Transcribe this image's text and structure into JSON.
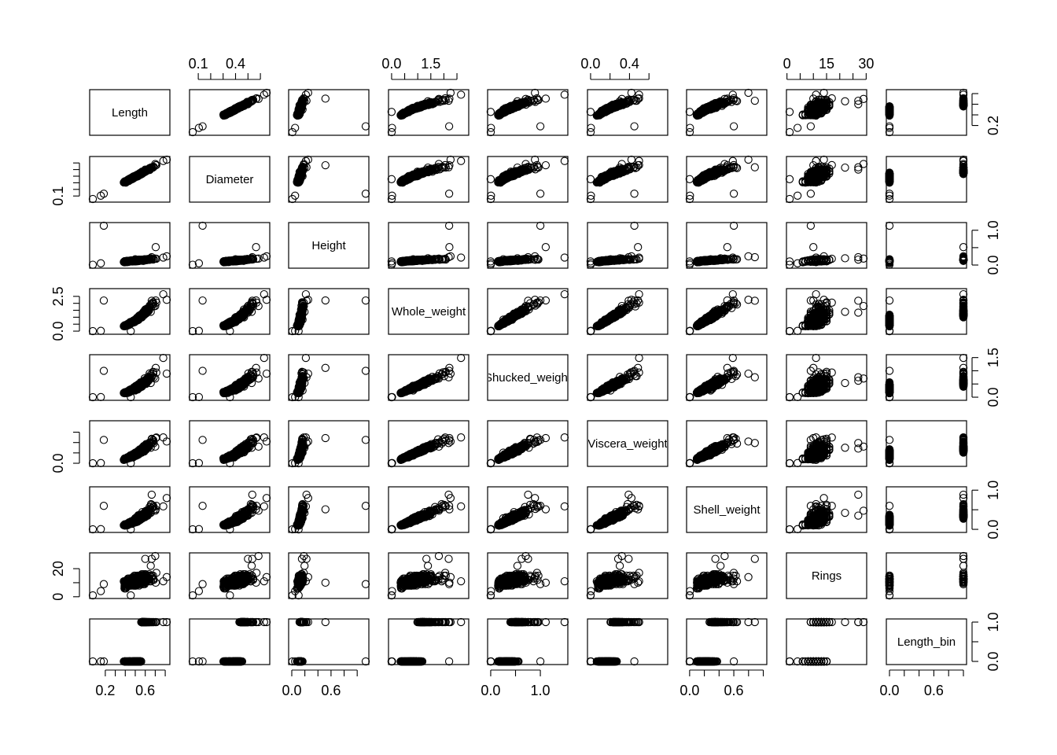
{
  "chart_data": {
    "type": "scatter",
    "kind": "scatterplot-matrix",
    "grid": false,
    "marker": "open-circle",
    "variables": [
      {
        "name": "Length",
        "label": "Length",
        "range": [
          0.075,
          0.815
        ]
      },
      {
        "name": "Diameter",
        "label": "Diameter",
        "range": [
          0.055,
          0.65
        ]
      },
      {
        "name": "Height",
        "label": "Height",
        "range": [
          0.0,
          1.13
        ]
      },
      {
        "name": "Whole_weight",
        "label": "Whole_weight",
        "range": [
          0.002,
          2.83
        ]
      },
      {
        "name": "Shucked_weight",
        "label": "Shucked_weight",
        "range": [
          0.001,
          1.49
        ]
      },
      {
        "name": "Viscera_weight",
        "label": "Viscera_weight",
        "range": [
          0.0005,
          0.76
        ]
      },
      {
        "name": "Shell_weight",
        "label": "Shell_weight",
        "range": [
          0.0015,
          1.005
        ]
      },
      {
        "name": "Rings",
        "label": "Rings",
        "range": [
          1,
          29
        ]
      },
      {
        "name": "Length_bin",
        "label": "Length_bin",
        "range": [
          0,
          1
        ]
      }
    ],
    "axes": {
      "bottom": [
        {
          "var_index": 0,
          "ticks": [
            0.2,
            0.3,
            0.4,
            0.5,
            0.6,
            0.7,
            0.8
          ],
          "labels": [
            "0.2",
            "0.6"
          ],
          "label_values": [
            0.2,
            0.6
          ]
        },
        {
          "var_index": 2,
          "ticks": [
            0.0,
            0.2,
            0.4,
            0.6,
            0.8,
            1.0
          ],
          "labels": [
            "0.0",
            "0.6"
          ],
          "label_values": [
            0.0,
            0.6
          ]
        },
        {
          "var_index": 4,
          "ticks": [
            0.0,
            0.5,
            1.0
          ],
          "labels": [
            "0.0",
            "1.0"
          ],
          "label_values": [
            0.0,
            1.0
          ]
        },
        {
          "var_index": 6,
          "ticks": [
            0.0,
            0.2,
            0.4,
            0.6,
            0.8,
            1.0
          ],
          "labels": [
            "0.0",
            "0.6"
          ],
          "label_values": [
            0.0,
            0.6
          ]
        },
        {
          "var_index": 8,
          "ticks": [
            0.0,
            0.2,
            0.4,
            0.6,
            0.8,
            1.0
          ],
          "labels": [
            "0.0",
            "0.6"
          ],
          "label_values": [
            0.0,
            0.6
          ]
        }
      ],
      "top": [
        {
          "var_index": 1,
          "ticks": [
            0.1,
            0.2,
            0.3,
            0.4,
            0.5,
            0.6
          ],
          "labels": [
            "0.1",
            "0.4"
          ],
          "label_values": [
            0.1,
            0.4
          ]
        },
        {
          "var_index": 3,
          "ticks": [
            0.0,
            0.5,
            1.0,
            1.5,
            2.0,
            2.5
          ],
          "labels": [
            "0.0",
            "1.5"
          ],
          "label_values": [
            0.0,
            1.5
          ]
        },
        {
          "var_index": 5,
          "ticks": [
            0.0,
            0.2,
            0.4,
            0.6
          ],
          "labels": [
            "0.0",
            "0.4"
          ],
          "label_values": [
            0.0,
            0.4
          ]
        },
        {
          "var_index": 7,
          "ticks": [
            0,
            5,
            10,
            15,
            20,
            25,
            30
          ],
          "labels": [
            "0",
            "15",
            "30"
          ],
          "label_values": [
            0,
            15,
            30
          ]
        }
      ],
      "left": [
        {
          "var_index": 1,
          "ticks": [
            0.1,
            0.2,
            0.3,
            0.4,
            0.5,
            0.6
          ],
          "labels": [
            "0.1"
          ],
          "label_values": [
            0.1
          ]
        },
        {
          "var_index": 3,
          "ticks": [
            0.0,
            0.5,
            1.0,
            1.5,
            2.0,
            2.5
          ],
          "labels": [
            "0.0",
            "2.5"
          ],
          "label_values": [
            0.0,
            2.5
          ]
        },
        {
          "var_index": 5,
          "ticks": [
            0.0,
            0.2,
            0.4,
            0.6
          ],
          "labels": [
            "0.0"
          ],
          "label_values": [
            0.0
          ]
        },
        {
          "var_index": 7,
          "ticks": [
            0,
            10,
            20
          ],
          "labels": [
            "0",
            "20"
          ],
          "label_values": [
            0,
            20
          ]
        }
      ],
      "right": [
        {
          "var_index": 0,
          "ticks": [
            0.2,
            0.4,
            0.6,
            0.8
          ],
          "labels": [
            "0.2"
          ],
          "label_values": [
            0.2
          ]
        },
        {
          "var_index": 2,
          "ticks": [
            0.0,
            0.5,
            1.0
          ],
          "labels": [
            "0.0",
            "1.0"
          ],
          "label_values": [
            0.0,
            1.0
          ]
        },
        {
          "var_index": 4,
          "ticks": [
            0.0,
            0.5,
            1.0,
            1.5
          ],
          "labels": [
            "0.0",
            "1.5"
          ],
          "label_values": [
            0.0,
            1.5
          ]
        },
        {
          "var_index": 6,
          "ticks": [
            0.0,
            0.5,
            1.0
          ],
          "labels": [
            "0.0",
            "1.0"
          ],
          "label_values": [
            0.0,
            1.0
          ]
        },
        {
          "var_index": 8,
          "ticks": [
            0.0,
            0.5,
            1.0
          ],
          "labels": [
            "0.0",
            "1.0"
          ],
          "label_values": [
            0.0,
            1.0
          ]
        }
      ]
    },
    "observations": {
      "columns": [
        "Length",
        "Diameter",
        "Height",
        "Whole_weight",
        "Shucked_weight",
        "Viscera_weight",
        "Shell_weight",
        "Rings",
        "Length_bin"
      ],
      "rows": [
        [
          0.185,
          0.135,
          1.13,
          2.2,
          1.0,
          0.45,
          0.6,
          9,
          0
        ],
        [
          0.705,
          0.565,
          0.515,
          2.21,
          1.1075,
          0.4865,
          0.512,
          10,
          1
        ],
        [
          0.455,
          0.355,
          0.105,
          0.0,
          0.0,
          0.0,
          0.0,
          1,
          0
        ],
        [
          0.815,
          0.65,
          0.25,
          2.255,
          0.8905,
          0.42,
          0.7975,
          14,
          1
        ],
        [
          0.78,
          0.63,
          0.215,
          2.657,
          1.488,
          0.4985,
          0.586,
          11,
          1
        ],
        [
          0.7,
          0.585,
          0.185,
          1.8075,
          0.7055,
          0.3215,
          0.475,
          29,
          1
        ],
        [
          0.6,
          0.5,
          0.155,
          1.332,
          0.6235,
          0.2835,
          0.35,
          27,
          1
        ],
        [
          0.155,
          0.105,
          0.05,
          0.0175,
          0.005,
          0.0035,
          0.005,
          4,
          0
        ],
        [
          0.075,
          0.055,
          0.01,
          0.002,
          0.001,
          0.0005,
          0.0015,
          1,
          0
        ],
        [
          0.665,
          0.535,
          0.225,
          2.1835,
          0.7535,
          0.391,
          0.885,
          27,
          1
        ],
        [
          0.5,
          0.4,
          0.165,
          0.825,
          0.254,
          0.205,
          0.285,
          13,
          0
        ],
        [
          0.655,
          0.53,
          0.195,
          1.388,
          0.5385,
          0.3,
          0.42,
          22,
          1
        ]
      ]
    }
  }
}
